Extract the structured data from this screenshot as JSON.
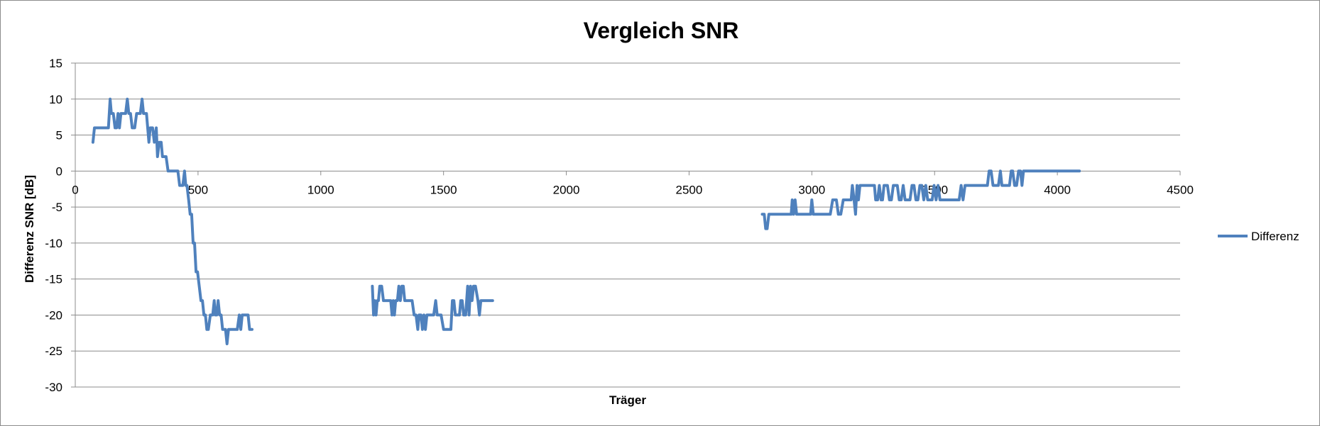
{
  "chart_data": {
    "type": "line",
    "title": "Vergleich SNR",
    "xlabel": "Träger",
    "ylabel": "Differenz SNR [dB]",
    "xlim": [
      0,
      4500
    ],
    "ylim": [
      -30,
      15
    ],
    "xticks": [
      0,
      500,
      1000,
      1500,
      2000,
      2500,
      3000,
      3500,
      4000,
      4500
    ],
    "yticks": [
      15,
      10,
      5,
      0,
      -5,
      -10,
      -15,
      -20,
      -25,
      -30
    ],
    "grid": "horizontal",
    "legend_position": "right",
    "series_color": "#4f81bd",
    "series": [
      {
        "name": "Differenz",
        "segments": [
          [
            [
              72,
              4
            ],
            [
              78,
              6
            ],
            [
              90,
              6
            ],
            [
              100,
              6
            ],
            [
              110,
              6
            ],
            [
              125,
              6
            ],
            [
              135,
              6
            ],
            [
              142,
              10
            ],
            [
              147,
              8
            ],
            [
              155,
              8
            ],
            [
              162,
              6
            ],
            [
              168,
              6
            ],
            [
              174,
              8
            ],
            [
              180,
              6
            ],
            [
              186,
              8
            ],
            [
              195,
              8
            ],
            [
              205,
              8
            ],
            [
              212,
              10
            ],
            [
              218,
              8
            ],
            [
              225,
              8
            ],
            [
              232,
              6
            ],
            [
              242,
              6
            ],
            [
              250,
              8
            ],
            [
              258,
              8
            ],
            [
              265,
              8
            ],
            [
              272,
              10
            ],
            [
              278,
              8
            ],
            [
              290,
              8
            ],
            [
              300,
              4
            ],
            [
              305,
              6
            ],
            [
              315,
              6
            ],
            [
              322,
              4
            ],
            [
              330,
              6
            ],
            [
              335,
              2
            ],
            [
              342,
              4
            ],
            [
              350,
              4
            ],
            [
              355,
              2
            ],
            [
              362,
              2
            ],
            [
              370,
              2
            ],
            [
              378,
              0
            ],
            [
              390,
              0
            ],
            [
              400,
              0
            ],
            [
              410,
              0
            ],
            [
              418,
              0
            ],
            [
              425,
              -2
            ],
            [
              432,
              -2
            ],
            [
              438,
              -2
            ],
            [
              445,
              0
            ],
            [
              450,
              -2
            ],
            [
              455,
              -2
            ],
            [
              462,
              -4
            ],
            [
              468,
              -6
            ],
            [
              474,
              -6
            ],
            [
              480,
              -10
            ],
            [
              486,
              -10
            ],
            [
              492,
              -14
            ],
            [
              498,
              -14
            ],
            [
              505,
              -16
            ],
            [
              512,
              -18
            ],
            [
              518,
              -18
            ],
            [
              524,
              -20
            ],
            [
              530,
              -20
            ],
            [
              536,
              -22
            ],
            [
              542,
              -22
            ],
            [
              550,
              -20
            ],
            [
              560,
              -20
            ],
            [
              566,
              -18
            ],
            [
              570,
              -20
            ],
            [
              576,
              -20
            ],
            [
              582,
              -18
            ],
            [
              588,
              -20
            ],
            [
              594,
              -20
            ],
            [
              600,
              -22
            ],
            [
              606,
              -22
            ],
            [
              612,
              -22
            ],
            [
              618,
              -24
            ],
            [
              624,
              -22
            ],
            [
              632,
              -22
            ],
            [
              640,
              -22
            ],
            [
              650,
              -22
            ],
            [
              660,
              -22
            ],
            [
              668,
              -20
            ],
            [
              674,
              -22
            ],
            [
              680,
              -20
            ],
            [
              686,
              -20
            ],
            [
              696,
              -20
            ],
            [
              704,
              -20
            ],
            [
              710,
              -22
            ],
            [
              720,
              -22
            ]
          ],
          [
            [
              1210,
              -16
            ],
            [
              1215,
              -20
            ],
            [
              1220,
              -18
            ],
            [
              1225,
              -20
            ],
            [
              1230,
              -18
            ],
            [
              1235,
              -18
            ],
            [
              1240,
              -16
            ],
            [
              1248,
              -16
            ],
            [
              1255,
              -18
            ],
            [
              1265,
              -18
            ],
            [
              1275,
              -18
            ],
            [
              1285,
              -18
            ],
            [
              1290,
              -20
            ],
            [
              1295,
              -18
            ],
            [
              1300,
              -20
            ],
            [
              1305,
              -18
            ],
            [
              1312,
              -18
            ],
            [
              1318,
              -16
            ],
            [
              1324,
              -18
            ],
            [
              1330,
              -16
            ],
            [
              1336,
              -16
            ],
            [
              1342,
              -18
            ],
            [
              1352,
              -18
            ],
            [
              1362,
              -18
            ],
            [
              1372,
              -18
            ],
            [
              1380,
              -20
            ],
            [
              1388,
              -20
            ],
            [
              1395,
              -22
            ],
            [
              1400,
              -20
            ],
            [
              1408,
              -20
            ],
            [
              1414,
              -22
            ],
            [
              1420,
              -20
            ],
            [
              1426,
              -22
            ],
            [
              1432,
              -20
            ],
            [
              1440,
              -20
            ],
            [
              1450,
              -20
            ],
            [
              1460,
              -20
            ],
            [
              1468,
              -18
            ],
            [
              1474,
              -20
            ],
            [
              1480,
              -20
            ],
            [
              1490,
              -20
            ],
            [
              1500,
              -22
            ],
            [
              1510,
              -22
            ],
            [
              1520,
              -22
            ],
            [
              1530,
              -22
            ],
            [
              1536,
              -18
            ],
            [
              1542,
              -18
            ],
            [
              1548,
              -20
            ],
            [
              1556,
              -20
            ],
            [
              1565,
              -20
            ],
            [
              1570,
              -18
            ],
            [
              1576,
              -18
            ],
            [
              1582,
              -20
            ],
            [
              1590,
              -20
            ],
            [
              1598,
              -16
            ],
            [
              1604,
              -20
            ],
            [
              1610,
              -16
            ],
            [
              1616,
              -18
            ],
            [
              1622,
              -16
            ],
            [
              1630,
              -16
            ],
            [
              1640,
              -18
            ],
            [
              1646,
              -20
            ],
            [
              1652,
              -18
            ],
            [
              1660,
              -18
            ],
            [
              1670,
              -18
            ],
            [
              1680,
              -18
            ],
            [
              1690,
              -18
            ],
            [
              1700,
              -18
            ]
          ],
          [
            [
              2798,
              -6
            ],
            [
              2806,
              -6
            ],
            [
              2812,
              -8
            ],
            [
              2818,
              -8
            ],
            [
              2825,
              -6
            ],
            [
              2840,
              -6
            ],
            [
              2860,
              -6
            ],
            [
              2880,
              -6
            ],
            [
              2900,
              -6
            ],
            [
              2916,
              -6
            ],
            [
              2920,
              -4
            ],
            [
              2926,
              -6
            ],
            [
              2932,
              -4
            ],
            [
              2938,
              -6
            ],
            [
              2950,
              -6
            ],
            [
              2965,
              -6
            ],
            [
              2980,
              -6
            ],
            [
              2995,
              -6
            ],
            [
              3000,
              -4
            ],
            [
              3006,
              -6
            ],
            [
              3020,
              -6
            ],
            [
              3040,
              -6
            ],
            [
              3060,
              -6
            ],
            [
              3075,
              -6
            ],
            [
              3085,
              -4
            ],
            [
              3100,
              -4
            ],
            [
              3108,
              -6
            ],
            [
              3118,
              -6
            ],
            [
              3128,
              -4
            ],
            [
              3140,
              -4
            ],
            [
              3150,
              -4
            ],
            [
              3160,
              -4
            ],
            [
              3165,
              -2
            ],
            [
              3172,
              -4
            ],
            [
              3178,
              -6
            ],
            [
              3184,
              -2
            ],
            [
              3190,
              -4
            ],
            [
              3196,
              -2
            ],
            [
              3210,
              -2
            ],
            [
              3225,
              -2
            ],
            [
              3240,
              -2
            ],
            [
              3255,
              -2
            ],
            [
              3260,
              -4
            ],
            [
              3268,
              -4
            ],
            [
              3275,
              -2
            ],
            [
              3282,
              -4
            ],
            [
              3288,
              -4
            ],
            [
              3294,
              -2
            ],
            [
              3300,
              -2
            ],
            [
              3308,
              -2
            ],
            [
              3316,
              -4
            ],
            [
              3324,
              -4
            ],
            [
              3332,
              -2
            ],
            [
              3340,
              -2
            ],
            [
              3348,
              -2
            ],
            [
              3356,
              -4
            ],
            [
              3364,
              -4
            ],
            [
              3372,
              -2
            ],
            [
              3380,
              -4
            ],
            [
              3390,
              -4
            ],
            [
              3400,
              -4
            ],
            [
              3408,
              -2
            ],
            [
              3416,
              -2
            ],
            [
              3424,
              -4
            ],
            [
              3432,
              -4
            ],
            [
              3440,
              -2
            ],
            [
              3448,
              -2
            ],
            [
              3456,
              -4
            ],
            [
              3464,
              -2
            ],
            [
              3472,
              -4
            ],
            [
              3480,
              -4
            ],
            [
              3490,
              -4
            ],
            [
              3498,
              -2
            ],
            [
              3506,
              -4
            ],
            [
              3514,
              -2
            ],
            [
              3522,
              -4
            ],
            [
              3530,
              -4
            ],
            [
              3540,
              -4
            ],
            [
              3550,
              -4
            ],
            [
              3560,
              -4
            ],
            [
              3570,
              -4
            ],
            [
              3580,
              -4
            ],
            [
              3590,
              -4
            ],
            [
              3600,
              -4
            ],
            [
              3608,
              -2
            ],
            [
              3616,
              -4
            ],
            [
              3624,
              -2
            ],
            [
              3640,
              -2
            ],
            [
              3660,
              -2
            ],
            [
              3680,
              -2
            ],
            [
              3700,
              -2
            ],
            [
              3715,
              -2
            ],
            [
              3722,
              0
            ],
            [
              3730,
              0
            ],
            [
              3738,
              -2
            ],
            [
              3750,
              -2
            ],
            [
              3760,
              -2
            ],
            [
              3768,
              0
            ],
            [
              3774,
              -2
            ],
            [
              3790,
              -2
            ],
            [
              3805,
              -2
            ],
            [
              3812,
              0
            ],
            [
              3818,
              0
            ],
            [
              3826,
              -2
            ],
            [
              3834,
              -2
            ],
            [
              3842,
              0
            ],
            [
              3850,
              0
            ],
            [
              3856,
              -2
            ],
            [
              3862,
              0
            ],
            [
              3870,
              0
            ],
            [
              3880,
              0
            ],
            [
              3900,
              0
            ],
            [
              3950,
              0
            ],
            [
              4000,
              0
            ],
            [
              4050,
              0
            ],
            [
              4090,
              0
            ]
          ]
        ]
      }
    ]
  }
}
